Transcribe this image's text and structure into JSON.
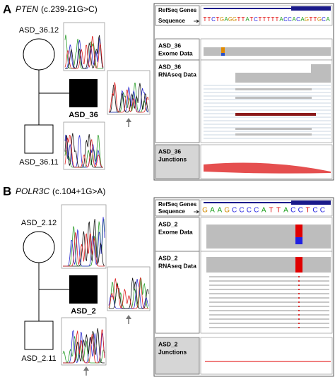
{
  "panels": [
    {
      "letter": "A",
      "gene": "PTEN",
      "variant": "(c.239-21G>C)",
      "pedigree": {
        "mother": "ASD_36.12",
        "proband": "ASD_36",
        "father": "ASD_36.11"
      },
      "igv": {
        "refseq": "RefSeq Genes",
        "sequence_label": "Sequence",
        "sequence": [
          {
            "base": "T",
            "color": "#e00000"
          },
          {
            "base": "T",
            "color": "#e00000"
          },
          {
            "base": "C",
            "color": "#2020e0"
          },
          {
            "base": "T",
            "color": "#e00000"
          },
          {
            "base": "G",
            "color": "#d08a00"
          },
          {
            "base": "A",
            "color": "#1a9e1a"
          },
          {
            "base": "G",
            "color": "#d08a00"
          },
          {
            "base": "G",
            "color": "#d08a00"
          },
          {
            "base": "T",
            "color": "#e00000"
          },
          {
            "base": "T",
            "color": "#e00000"
          },
          {
            "base": "A",
            "color": "#1a9e1a"
          },
          {
            "base": "T",
            "color": "#e00000"
          },
          {
            "base": "C",
            "color": "#2020e0"
          },
          {
            "base": "T",
            "color": "#e00000"
          },
          {
            "base": "T",
            "color": "#e00000"
          },
          {
            "base": "T",
            "color": "#e00000"
          },
          {
            "base": "T",
            "color": "#e00000"
          },
          {
            "base": "T",
            "color": "#e00000"
          },
          {
            "base": "A",
            "color": "#1a9e1a"
          },
          {
            "base": "C",
            "color": "#2020e0"
          },
          {
            "base": "C",
            "color": "#2020e0"
          },
          {
            "base": "A",
            "color": "#1a9e1a"
          },
          {
            "base": "C",
            "color": "#2020e0"
          },
          {
            "base": "A",
            "color": "#1a9e1a"
          },
          {
            "base": "G",
            "color": "#d08a00"
          },
          {
            "base": "T",
            "color": "#e00000"
          },
          {
            "base": "T",
            "color": "#e00000"
          },
          {
            "base": "G",
            "color": "#d08a00"
          },
          {
            "base": "C",
            "color": "#2020e0"
          },
          {
            "base": "A",
            "color": "#1a9e1a"
          }
        ],
        "tracks": [
          [
            "ASD_36",
            "Exome Data"
          ],
          [
            "ASD_36",
            "RNAseq Data"
          ],
          [
            "ASD_36",
            "Junctions"
          ]
        ]
      }
    },
    {
      "letter": "B",
      "gene": "POLR3C",
      "variant": "(c.104+1G>A)",
      "pedigree": {
        "mother": "ASD_2.12",
        "proband": "ASD_2",
        "father": "ASD_2.11"
      },
      "igv": {
        "refseq": "RefSeq Genes",
        "sequence_label": "Sequence",
        "sequence": [
          {
            "base": "G",
            "color": "#d08a00"
          },
          {
            "base": "A",
            "color": "#1a9e1a"
          },
          {
            "base": "A",
            "color": "#1a9e1a"
          },
          {
            "base": "G",
            "color": "#d08a00"
          },
          {
            "base": "C",
            "color": "#2020e0"
          },
          {
            "base": "C",
            "color": "#2020e0"
          },
          {
            "base": "C",
            "color": "#2020e0"
          },
          {
            "base": "C",
            "color": "#2020e0"
          },
          {
            "base": "A",
            "color": "#1a9e1a"
          },
          {
            "base": "T",
            "color": "#e00000"
          },
          {
            "base": "T",
            "color": "#e00000"
          },
          {
            "base": "A",
            "color": "#1a9e1a"
          },
          {
            "base": "C",
            "color": "#2020e0"
          },
          {
            "base": "C",
            "color": "#2020e0"
          },
          {
            "base": "T",
            "color": "#e00000"
          },
          {
            "base": "C",
            "color": "#2020e0"
          },
          {
            "base": "C",
            "color": "#2020e0"
          }
        ],
        "tracks": [
          [
            "ASD_2",
            "Exome Data"
          ],
          [
            "ASD_2",
            "RNAseq Data"
          ],
          [
            "ASD_2",
            "Junctions"
          ]
        ]
      }
    }
  ]
}
